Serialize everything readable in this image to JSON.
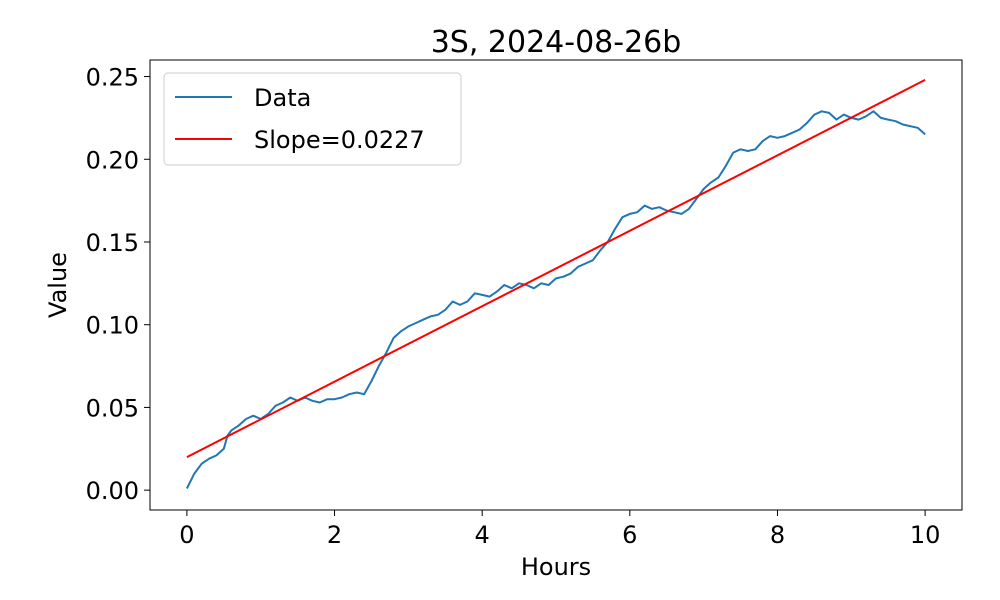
{
  "chart_data": {
    "type": "line",
    "title": "3S, 2024-08-26b",
    "xlabel": "Hours",
    "ylabel": "Value",
    "xlim": [
      -0.5,
      10.5
    ],
    "ylim": [
      -0.012,
      0.26
    ],
    "xticks": [
      0,
      2,
      4,
      6,
      8,
      10
    ],
    "xtick_labels": [
      "0",
      "2",
      "4",
      "6",
      "8",
      "10"
    ],
    "yticks": [
      0.0,
      0.05,
      0.1,
      0.15,
      0.2,
      0.25
    ],
    "ytick_labels": [
      "0.00",
      "0.05",
      "0.10",
      "0.15",
      "0.20",
      "0.25"
    ],
    "grid": false,
    "legend_position": "top-left",
    "series": [
      {
        "name": "Data",
        "color": "#1f77b4",
        "x": [
          0.0,
          0.1,
          0.2,
          0.3,
          0.4,
          0.5,
          0.55,
          0.6,
          0.7,
          0.8,
          0.9,
          1.0,
          1.1,
          1.2,
          1.3,
          1.4,
          1.5,
          1.6,
          1.7,
          1.8,
          1.9,
          2.0,
          2.1,
          2.2,
          2.3,
          2.4,
          2.5,
          2.6,
          2.7,
          2.8,
          2.9,
          3.0,
          3.1,
          3.2,
          3.3,
          3.4,
          3.5,
          3.6,
          3.7,
          3.8,
          3.9,
          4.0,
          4.1,
          4.2,
          4.3,
          4.4,
          4.5,
          4.6,
          4.7,
          4.8,
          4.9,
          5.0,
          5.1,
          5.2,
          5.3,
          5.4,
          5.5,
          5.6,
          5.7,
          5.8,
          5.9,
          6.0,
          6.1,
          6.2,
          6.3,
          6.4,
          6.5,
          6.6,
          6.7,
          6.8,
          6.9,
          7.0,
          7.1,
          7.2,
          7.3,
          7.4,
          7.5,
          7.6,
          7.7,
          7.8,
          7.9,
          8.0,
          8.1,
          8.2,
          8.3,
          8.4,
          8.5,
          8.6,
          8.7,
          8.8,
          8.9,
          9.0,
          9.1,
          9.2,
          9.3,
          9.4,
          9.5,
          9.6,
          9.7,
          9.8,
          9.9,
          10.0
        ],
        "y": [
          0.001,
          0.01,
          0.016,
          0.019,
          0.021,
          0.025,
          0.033,
          0.036,
          0.039,
          0.043,
          0.045,
          0.043,
          0.046,
          0.051,
          0.053,
          0.056,
          0.054,
          0.056,
          0.054,
          0.053,
          0.055,
          0.055,
          0.056,
          0.058,
          0.059,
          0.058,
          0.066,
          0.075,
          0.083,
          0.092,
          0.096,
          0.099,
          0.101,
          0.103,
          0.105,
          0.106,
          0.109,
          0.114,
          0.112,
          0.114,
          0.119,
          0.118,
          0.117,
          0.12,
          0.124,
          0.122,
          0.125,
          0.124,
          0.122,
          0.125,
          0.124,
          0.128,
          0.129,
          0.131,
          0.135,
          0.137,
          0.139,
          0.145,
          0.15,
          0.158,
          0.165,
          0.167,
          0.168,
          0.172,
          0.17,
          0.171,
          0.169,
          0.168,
          0.167,
          0.17,
          0.176,
          0.182,
          0.186,
          0.189,
          0.196,
          0.204,
          0.206,
          0.205,
          0.206,
          0.211,
          0.214,
          0.213,
          0.214,
          0.216,
          0.218,
          0.222,
          0.227,
          0.229,
          0.228,
          0.224,
          0.227,
          0.225,
          0.224,
          0.226,
          0.229,
          0.225,
          0.224,
          0.223,
          0.221,
          0.22,
          0.219,
          0.215
        ]
      },
      {
        "name": "Slope=0.0227",
        "color": "#ff0000",
        "x": [
          0.0,
          10.0
        ],
        "y": [
          0.02,
          0.248
        ]
      }
    ]
  }
}
